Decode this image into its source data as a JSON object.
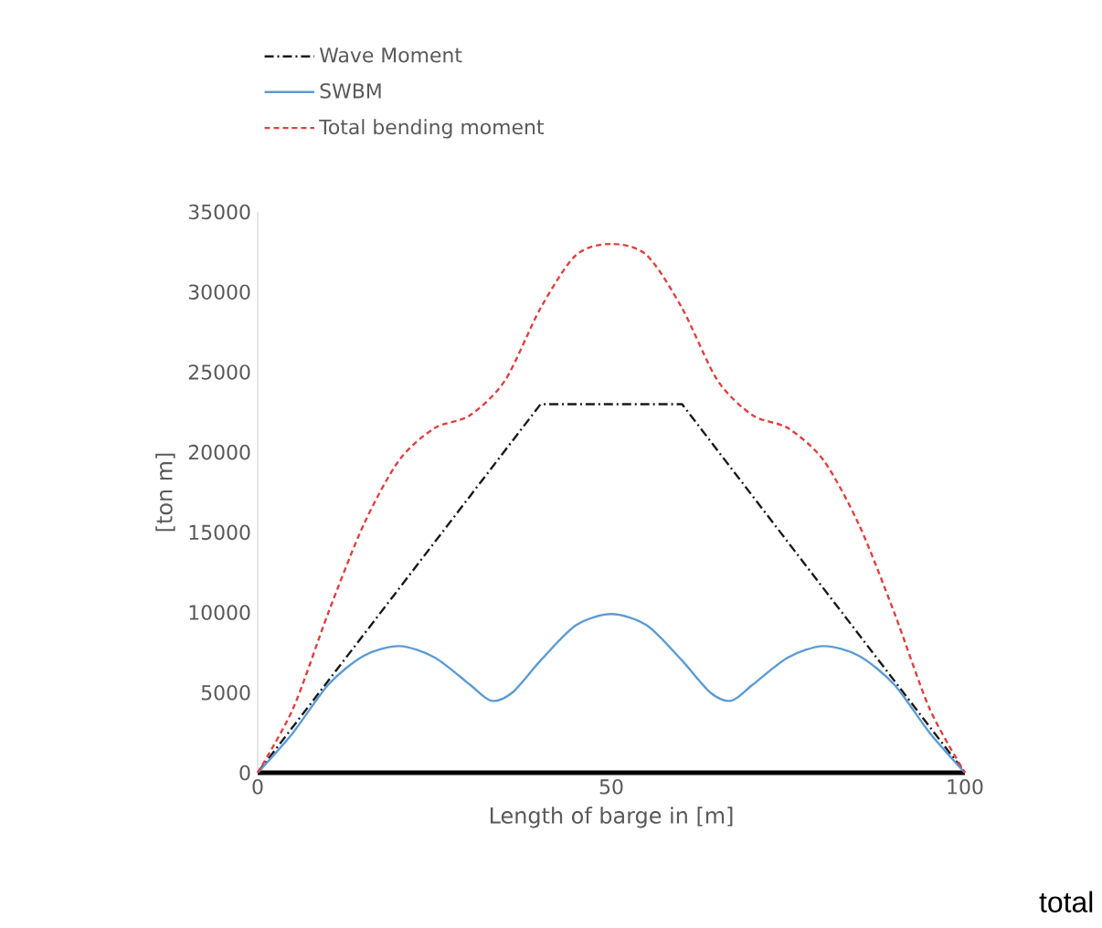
{
  "chart_data": {
    "type": "line",
    "xlabel": "Length of barge in [m]",
    "ylabel": "[ton m]",
    "xlim": [
      0,
      100
    ],
    "xticks": [
      0,
      50,
      100
    ],
    "ylim": [
      0,
      35000
    ],
    "yticks": [
      0,
      5000,
      10000,
      15000,
      20000,
      25000,
      30000,
      35000
    ],
    "grid": false,
    "legend": "top",
    "marker": "none",
    "series": [
      {
        "name": "Wave Moment",
        "color": "#1a1a1a",
        "line_style": "dashdot",
        "x": [
          0,
          40,
          60,
          100
        ],
        "values": [
          0,
          23000,
          23000,
          0
        ]
      },
      {
        "name": "SWBM",
        "color": "#5b9bd5",
        "line_style": "solid",
        "x": [
          0,
          5,
          10,
          15,
          20,
          25,
          30,
          33,
          36,
          40,
          45,
          50,
          55,
          60,
          64,
          67,
          70,
          75,
          80,
          85,
          90,
          95,
          100
        ],
        "values": [
          0,
          2500,
          5500,
          7300,
          7900,
          7200,
          5500,
          4500,
          5000,
          7000,
          9200,
          9900,
          9200,
          7000,
          5000,
          4500,
          5500,
          7200,
          7900,
          7300,
          5500,
          2500,
          0
        ]
      },
      {
        "name": "Total bending moment",
        "color": "#e04040",
        "line_style": "dashed",
        "x": [
          0,
          5,
          10,
          15,
          20,
          25,
          30,
          35,
          40,
          45,
          50,
          55,
          60,
          65,
          70,
          75,
          80,
          85,
          90,
          95,
          100
        ],
        "values": [
          0,
          4000,
          10000,
          15500,
          19500,
          21500,
          22300,
          24500,
          29000,
          32300,
          33000,
          32300,
          29000,
          24500,
          22300,
          21500,
          19500,
          15500,
          10000,
          4000,
          0
        ]
      }
    ],
    "annotations": [
      "total"
    ]
  }
}
